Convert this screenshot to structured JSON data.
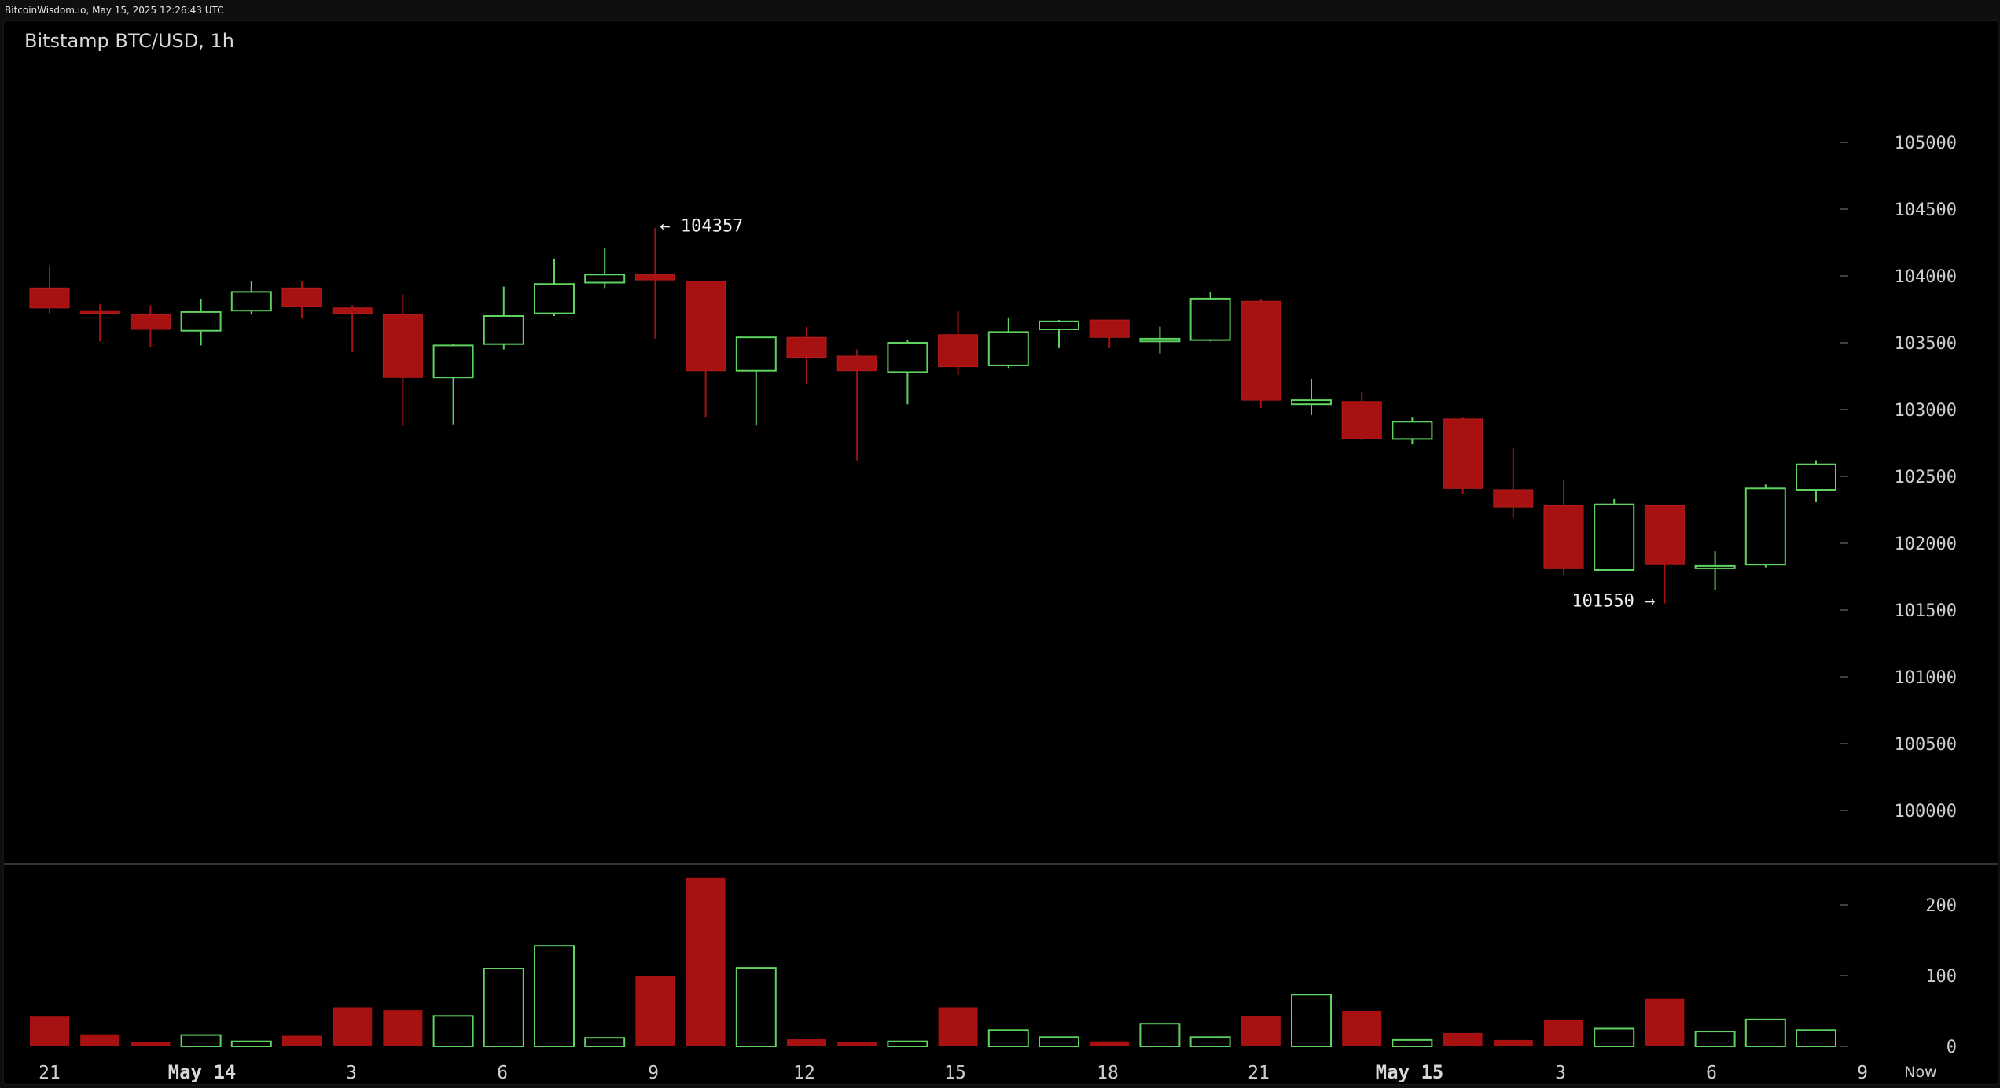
{
  "header": {
    "source": "BitcoinWisdom.io, May 15, 2025 12:26:43 UTC"
  },
  "chart_data": {
    "type": "candlestick",
    "title": "Bitstamp BTC/USD, 1h",
    "price_axis": {
      "range": [
        99600,
        105600
      ],
      "ticks": [
        100000,
        100500,
        101000,
        101500,
        102000,
        102500,
        103000,
        103500,
        104000,
        104500,
        105000
      ]
    },
    "volume_axis": {
      "range": [
        0,
        250
      ],
      "ticks": [
        0,
        100,
        200
      ]
    },
    "x_axis_labels": [
      "21",
      "May 14",
      "3",
      "6",
      "9",
      "12",
      "15",
      "18",
      "21",
      "May 15",
      "3",
      "6",
      "9",
      "Now"
    ],
    "annotations": {
      "high": "← 104357",
      "low": "101550 →"
    },
    "colors": {
      "up": "#5fd35f",
      "down": "#a81111",
      "background": "#000000",
      "grid_tick": "#555555"
    },
    "candles": [
      {
        "o": 103760,
        "h": 104070,
        "l": 103720,
        "c": 103910,
        "v": 42,
        "up": false
      },
      {
        "o": 103740,
        "h": 103790,
        "l": 103510,
        "c": 103720,
        "v": 17,
        "up": false
      },
      {
        "o": 103710,
        "h": 103780,
        "l": 103470,
        "c": 103600,
        "v": 6,
        "up": false
      },
      {
        "o": 103590,
        "h": 103830,
        "l": 103480,
        "c": 103730,
        "v": 16,
        "up": true
      },
      {
        "o": 103740,
        "h": 103960,
        "l": 103710,
        "c": 103880,
        "v": 7,
        "up": true
      },
      {
        "o": 103910,
        "h": 103960,
        "l": 103680,
        "c": 103770,
        "v": 15,
        "up": false
      },
      {
        "o": 103760,
        "h": 103780,
        "l": 103430,
        "c": 103720,
        "v": 55,
        "up": false
      },
      {
        "o": 103710,
        "h": 103860,
        "l": 102880,
        "c": 103240,
        "v": 51,
        "up": false
      },
      {
        "o": 103240,
        "h": 103490,
        "l": 102890,
        "c": 103480,
        "v": 43,
        "up": true
      },
      {
        "o": 103490,
        "h": 103920,
        "l": 103450,
        "c": 103700,
        "v": 110,
        "up": true
      },
      {
        "o": 103720,
        "h": 104130,
        "l": 103700,
        "c": 103940,
        "v": 142,
        "up": true
      },
      {
        "o": 103950,
        "h": 104210,
        "l": 103910,
        "c": 104010,
        "v": 12,
        "up": true
      },
      {
        "o": 104010,
        "h": 104357,
        "l": 103530,
        "c": 103970,
        "v": 99,
        "up": false
      },
      {
        "o": 103960,
        "h": 103960,
        "l": 102940,
        "c": 103290,
        "v": 238,
        "up": false
      },
      {
        "o": 103290,
        "h": 103540,
        "l": 102880,
        "c": 103540,
        "v": 111,
        "up": true
      },
      {
        "o": 103540,
        "h": 103620,
        "l": 103190,
        "c": 103390,
        "v": 10,
        "up": false
      },
      {
        "o": 103400,
        "h": 103450,
        "l": 102620,
        "c": 103290,
        "v": 6,
        "up": false
      },
      {
        "o": 103280,
        "h": 103520,
        "l": 103040,
        "c": 103500,
        "v": 7,
        "up": true
      },
      {
        "o": 103560,
        "h": 103740,
        "l": 103260,
        "c": 103320,
        "v": 55,
        "up": false
      },
      {
        "o": 103330,
        "h": 103690,
        "l": 103310,
        "c": 103580,
        "v": 23,
        "up": true
      },
      {
        "o": 103600,
        "h": 103670,
        "l": 103460,
        "c": 103660,
        "v": 13,
        "up": true
      },
      {
        "o": 103670,
        "h": 103670,
        "l": 103460,
        "c": 103540,
        "v": 7,
        "up": false
      },
      {
        "o": 103510,
        "h": 103620,
        "l": 103420,
        "c": 103530,
        "v": 32,
        "up": true
      },
      {
        "o": 103520,
        "h": 103880,
        "l": 103510,
        "c": 103830,
        "v": 13,
        "up": true
      },
      {
        "o": 103810,
        "h": 103830,
        "l": 103010,
        "c": 103070,
        "v": 43,
        "up": false
      },
      {
        "o": 103040,
        "h": 103230,
        "l": 102960,
        "c": 103070,
        "v": 73,
        "up": true
      },
      {
        "o": 103060,
        "h": 103130,
        "l": 102770,
        "c": 102780,
        "v": 50,
        "up": false
      },
      {
        "o": 102780,
        "h": 102940,
        "l": 102740,
        "c": 102910,
        "v": 9,
        "up": true
      },
      {
        "o": 102930,
        "h": 102940,
        "l": 102370,
        "c": 102410,
        "v": 19,
        "up": false
      },
      {
        "o": 102400,
        "h": 102710,
        "l": 102190,
        "c": 102270,
        "v": 9,
        "up": false
      },
      {
        "o": 102280,
        "h": 102470,
        "l": 101760,
        "c": 101810,
        "v": 37,
        "up": false
      },
      {
        "o": 101800,
        "h": 102330,
        "l": 101800,
        "c": 102290,
        "v": 25,
        "up": true
      },
      {
        "o": 102280,
        "h": 102280,
        "l": 101550,
        "c": 101840,
        "v": 67,
        "up": false
      },
      {
        "o": 101820,
        "h": 101940,
        "l": 101650,
        "c": 101830,
        "v": 21,
        "up": true
      },
      {
        "o": 101840,
        "h": 102440,
        "l": 101820,
        "c": 102410,
        "v": 38,
        "up": true
      },
      {
        "o": 102400,
        "h": 102620,
        "l": 102310,
        "c": 102590,
        "v": 23,
        "up": true
      }
    ]
  }
}
